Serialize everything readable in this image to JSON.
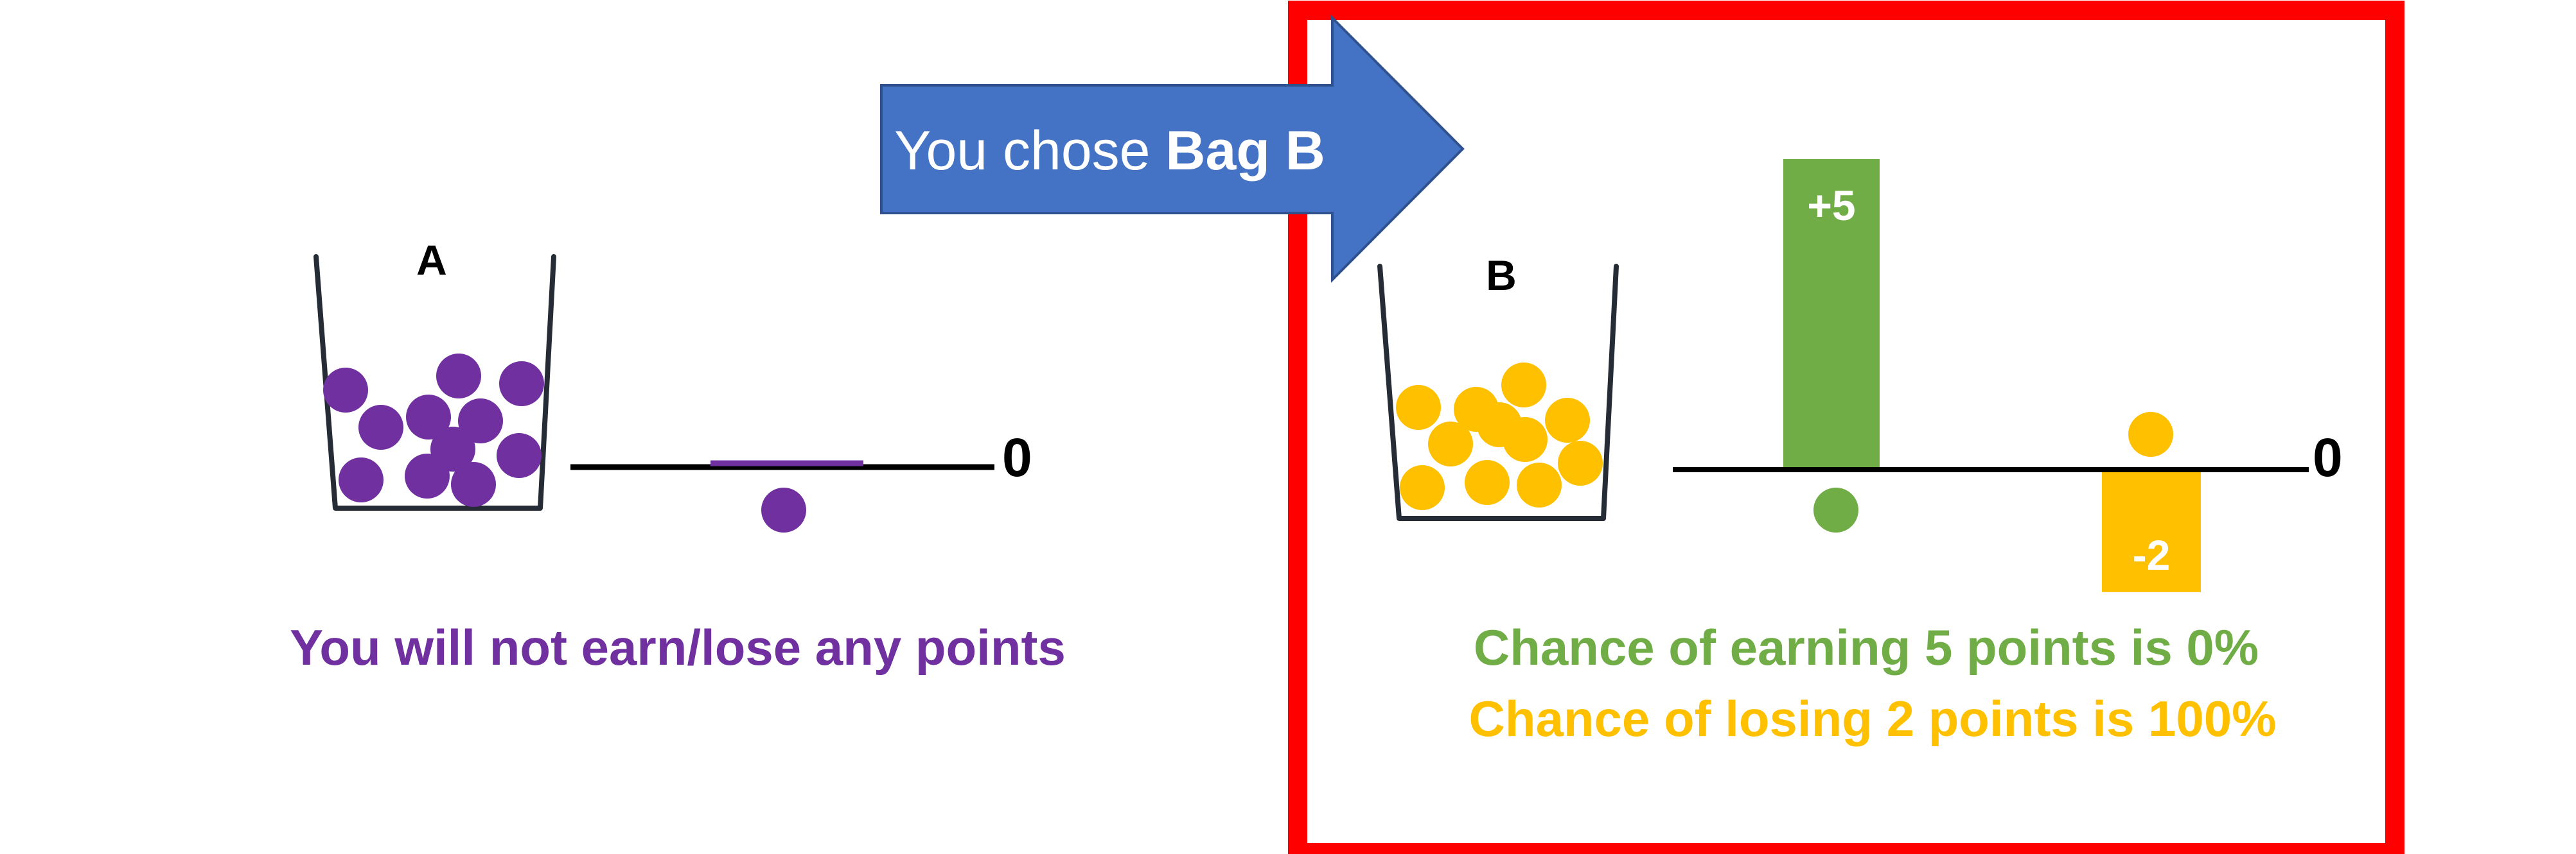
{
  "arrow": {
    "prefix": "You chose ",
    "choice": "Bag B",
    "color": "#4472c4"
  },
  "bag_a": {
    "label": "A",
    "ball_color": "#7030a0",
    "ball_count": 11,
    "outcome_zero_label": "0",
    "caption": "You will not earn/lose any points"
  },
  "bag_b": {
    "label": "B",
    "ball_color": "#ffc000",
    "ball_count": 11,
    "outcome_zero_label": "0",
    "gain_label": "+5",
    "gain_value": 5,
    "gain_color": "#70ad47",
    "loss_label": "-2",
    "loss_value": -2,
    "loss_color": "#ffc000",
    "caption_gain": "Chance of earning 5 points is 0%",
    "caption_loss": "Chance of losing 2 points is 100%"
  },
  "highlight_color": "#ff0000"
}
